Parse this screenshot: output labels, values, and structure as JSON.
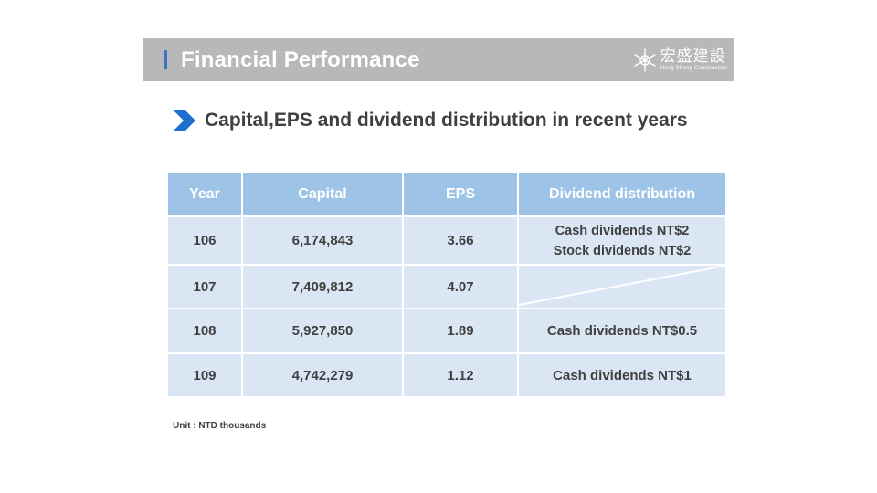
{
  "header": {
    "title": "Financial Performance",
    "logo_zh": "宏盛建設",
    "logo_en": "Hong Sheng Construction"
  },
  "subtitle": "Capital,EPS and dividend distribution in recent years",
  "table": {
    "headers": [
      "Year",
      "Capital",
      "EPS",
      "Dividend distribution"
    ],
    "rows": [
      {
        "year": "106",
        "capital": "6,174,843",
        "eps": "3.66",
        "dividend": [
          "Cash dividends NT$2",
          "Stock dividends NT$2"
        ]
      },
      {
        "year": "107",
        "capital": "7,409,812",
        "eps": "4.07",
        "dividend": []
      },
      {
        "year": "108",
        "capital": "5,927,850",
        "eps": "1.89",
        "dividend": [
          "Cash dividends  NT$0.5"
        ]
      },
      {
        "year": "109",
        "capital": "4,742,279",
        "eps": "1.12",
        "dividend": [
          "Cash dividends  NT$1"
        ]
      }
    ]
  },
  "footnote": "Unit : NTD thousands",
  "colors": {
    "header_bg": "#b8b8b8",
    "accent": "#3d74c6",
    "table_head": "#9dc3e6",
    "table_body": "#dbe6f4",
    "text": "#404040"
  }
}
